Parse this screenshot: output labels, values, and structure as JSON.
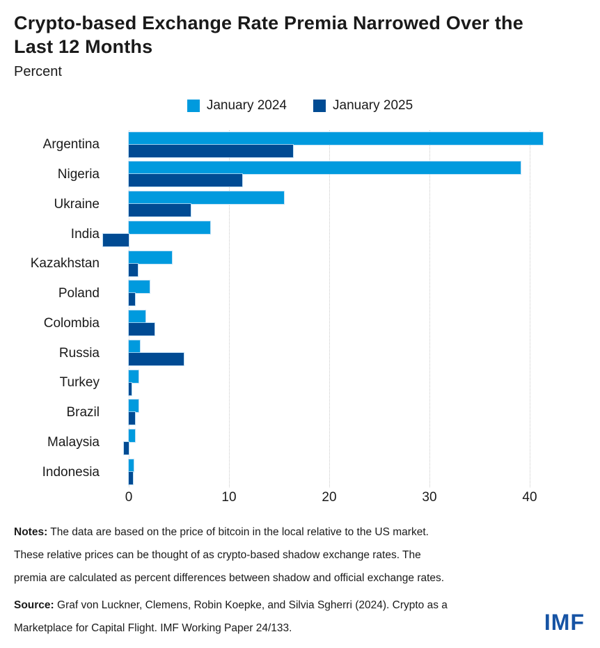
{
  "title_lines": [
    "Crypto-based Exchange Rate Premia Narrowed Over the",
    "Last 12 Months"
  ],
  "subtitle": "Percent",
  "legend": [
    {
      "label": "January 2024",
      "color": "#009ADE"
    },
    {
      "label": "January 2025",
      "color": "#004B93"
    }
  ],
  "chart_data": {
    "type": "bar",
    "orientation": "horizontal",
    "title": "Crypto-based Exchange Rate Premia Narrowed Over the Last 12 Months",
    "subtitle": "Percent",
    "categories": [
      "Argentina",
      "Nigeria",
      "Ukraine",
      "India",
      "Kazakhstan",
      "Poland",
      "Colombia",
      "Russia",
      "Turkey",
      "Brazil",
      "Malaysia",
      "Indonesia"
    ],
    "series": [
      {
        "name": "January 2024",
        "color": "#009ADE",
        "values": [
          41.3,
          39.1,
          15.5,
          8.1,
          4.3,
          2.1,
          1.7,
          1.1,
          1.0,
          1.0,
          0.6,
          0.5
        ]
      },
      {
        "name": "January 2025",
        "color": "#004B93",
        "values": [
          16.4,
          11.3,
          6.2,
          -2.6,
          0.9,
          0.6,
          2.6,
          5.5,
          0.3,
          0.6,
          -0.5,
          0.4
        ]
      }
    ],
    "xticks": [
      0,
      10,
      20,
      30,
      40
    ],
    "xlim": [
      -3,
      47
    ],
    "xlabel": "",
    "ylabel": "",
    "grid": "vertical-dotted",
    "legend_position": "top-center"
  },
  "notes": {
    "label": "Notes:",
    "lines": [
      " The data are based on the price of bitcoin in the local relative to the US market.",
      "These relative prices can be thought of as crypto-based shadow exchange rates. The",
      "premia are calculated as percent differences between shadow and official exchange rates."
    ]
  },
  "source": {
    "label": "Source:",
    "lines": [
      "  Graf von Luckner, Clemens, Robin Koepke, and Silvia Sgherri (2024). Crypto as a",
      "Marketplace for Capital Flight. IMF Working Paper 24/133."
    ]
  },
  "logo_text": "IMF",
  "colors": {
    "series_2024": "#009ADE",
    "series_2025": "#004B93",
    "logo_blue": "#1653A4",
    "gridline": "#C8C8C8",
    "text": "#1A1A1A"
  }
}
